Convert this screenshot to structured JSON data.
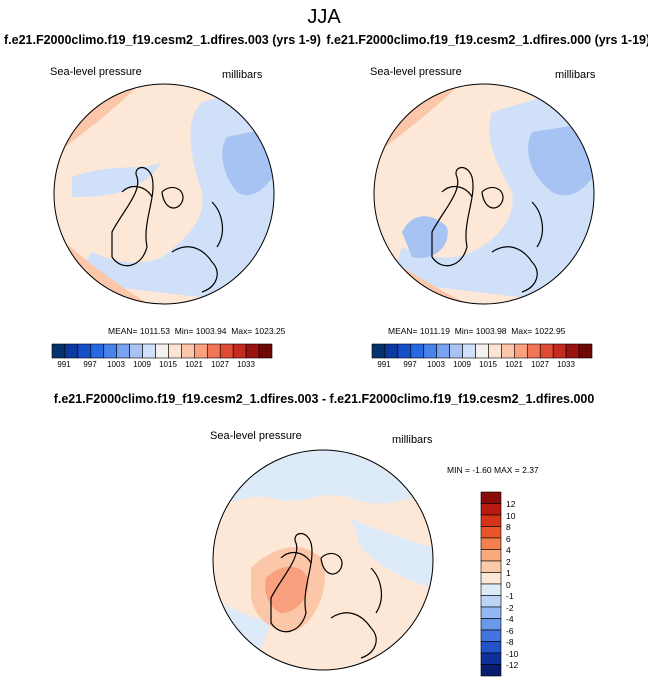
{
  "season": "JJA",
  "top_titles": [
    "f.e21.F2000climo.f19_f19.cesm2_1.dfires.003 (yrs 1-9)",
    "f.e21.F2000climo.f19_f19.cesm2_1.dfires.000 (yrs 1-19)"
  ],
  "diff_title": "f.e21.F2000climo.f19_f19.cesm2_1.dfires.003 - f.e21.F2000climo.f19_f19.cesm2_1.dfires.000",
  "panels": [
    {
      "variable": "Sea-level pressure",
      "units": "millibars",
      "stats": {
        "mean_label": "MEAN=",
        "mean": "1011.53",
        "min_label": "Min=",
        "min": "1003.94",
        "max_label": "Max=",
        "max": "1023.25"
      }
    },
    {
      "variable": "Sea-level pressure",
      "units": "millibars",
      "stats": {
        "mean_label": "MEAN=",
        "mean": "1011.19",
        "min_label": "Min=",
        "min": "1003.98",
        "max_label": "Max=",
        "max": "1022.95"
      }
    }
  ],
  "diff_panel": {
    "variable": "Sea-level pressure",
    "units": "millibars",
    "stats_text": "MIN =  -1.60 MAX =   2.37"
  },
  "abs_colorbar": {
    "tick_labels": [
      "991",
      "997",
      "1003",
      "1009",
      "1015",
      "1021",
      "1027",
      "1033"
    ],
    "colors": [
      "#08306b",
      "#0b3a9c",
      "#1550c8",
      "#2868e0",
      "#4a82ec",
      "#7aa2f0",
      "#a6c3f4",
      "#cfe0f8",
      "#f4f1ee",
      "#fde4d2",
      "#fcc6a8",
      "#f9a07e",
      "#f07556",
      "#e04b34",
      "#c42a1f",
      "#9a1310",
      "#6e0806"
    ]
  },
  "diff_colorbar": {
    "tick_labels": [
      "12",
      "10",
      "8",
      "6",
      "4",
      "2",
      "1",
      "0",
      "-1",
      "-2",
      "-4",
      "-6",
      "-8",
      "-10",
      "-12"
    ],
    "colors": [
      "#8a0c08",
      "#b81a10",
      "#d43418",
      "#e8552a",
      "#f3804e",
      "#f9a97c",
      "#fccaa8",
      "#fde7d6",
      "#ddeaf8",
      "#bcd4f6",
      "#95b8f2",
      "#6c98ec",
      "#4474e0",
      "#2352c8",
      "#0e309a",
      "#081d6e"
    ]
  },
  "map_colors": {
    "background": "#fde7d6",
    "low": "#cfe0f8",
    "lower": "#a6c3f4",
    "high1": "#fcc6a8",
    "high2": "#f9a07e",
    "high3": "#f07556"
  }
}
